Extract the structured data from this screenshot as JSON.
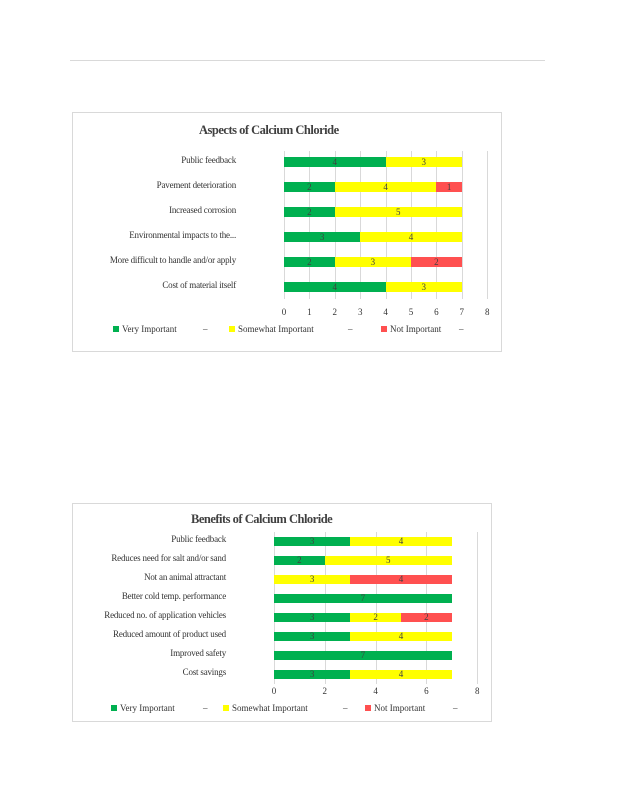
{
  "colors": {
    "very": "#00b050",
    "somewhat": "#ffff00",
    "not": "#ff5050"
  },
  "chart_data": [
    {
      "type": "bar",
      "orientation": "horizontal",
      "stacked": true,
      "title": "Aspects of Calcium Chloride",
      "categories": [
        "Public feedback",
        "Pavement deterioration",
        "Increased corrosion",
        "Environmental impacts to the...",
        "More difficult to handle and/or apply",
        "Cost of material itself"
      ],
      "series": [
        {
          "name": "Very Important",
          "values": [
            4,
            2,
            2,
            3,
            2,
            4
          ]
        },
        {
          "name": "Somewhat Important",
          "values": [
            3,
            4,
            5,
            4,
            3,
            3
          ]
        },
        {
          "name": "Not Important",
          "values": [
            0,
            1,
            0,
            0,
            2,
            0
          ]
        }
      ],
      "xlim": [
        0,
        8
      ],
      "xticks": [
        "0",
        "1",
        "2",
        "3",
        "4",
        "5",
        "6",
        "7",
        "8"
      ],
      "grid": true,
      "legend": "bottom",
      "legend_separator": "–"
    },
    {
      "type": "bar",
      "orientation": "horizontal",
      "stacked": true,
      "title": "Benefits of Calcium Chloride",
      "categories": [
        "Public feedback",
        "Reduces need for salt and/or sand",
        "Not an animal attractant",
        "Better cold temp. performance",
        "Reduced no. of application vehicles",
        "Reduced amount of product used",
        "Improved safety",
        "Cost savings"
      ],
      "series": [
        {
          "name": "Very Important",
          "values": [
            3,
            2,
            0,
            7,
            3,
            3,
            7,
            3
          ]
        },
        {
          "name": "Somewhat Important",
          "values": [
            4,
            5,
            3,
            0,
            2,
            4,
            0,
            4
          ]
        },
        {
          "name": "Not Important",
          "values": [
            0,
            0,
            4,
            0,
            2,
            0,
            0,
            0
          ]
        }
      ],
      "xlim": [
        0,
        8
      ],
      "xticks": [
        "0",
        "2",
        "4",
        "6",
        "8"
      ],
      "grid": true,
      "legend": "bottom",
      "legend_separator": "–"
    }
  ]
}
